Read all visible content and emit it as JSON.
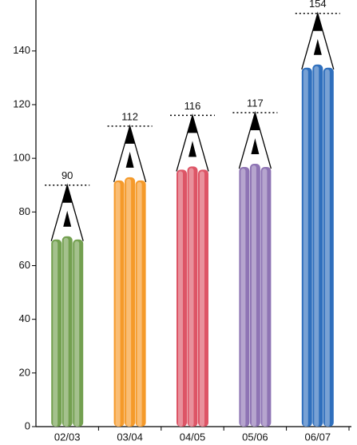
{
  "chart_data": {
    "type": "bar",
    "categories": [
      "02/03",
      "03/04",
      "04/05",
      "05/06",
      "06/07"
    ],
    "values": [
      90,
      112,
      116,
      117,
      154
    ],
    "colors": [
      "#73a050",
      "#f59a2a",
      "#dd5566",
      "#8e74b4",
      "#2f6fbd"
    ],
    "ylim": [
      0,
      159
    ],
    "yticks": [
      0,
      20,
      40,
      60,
      80,
      100,
      120,
      140
    ]
  }
}
